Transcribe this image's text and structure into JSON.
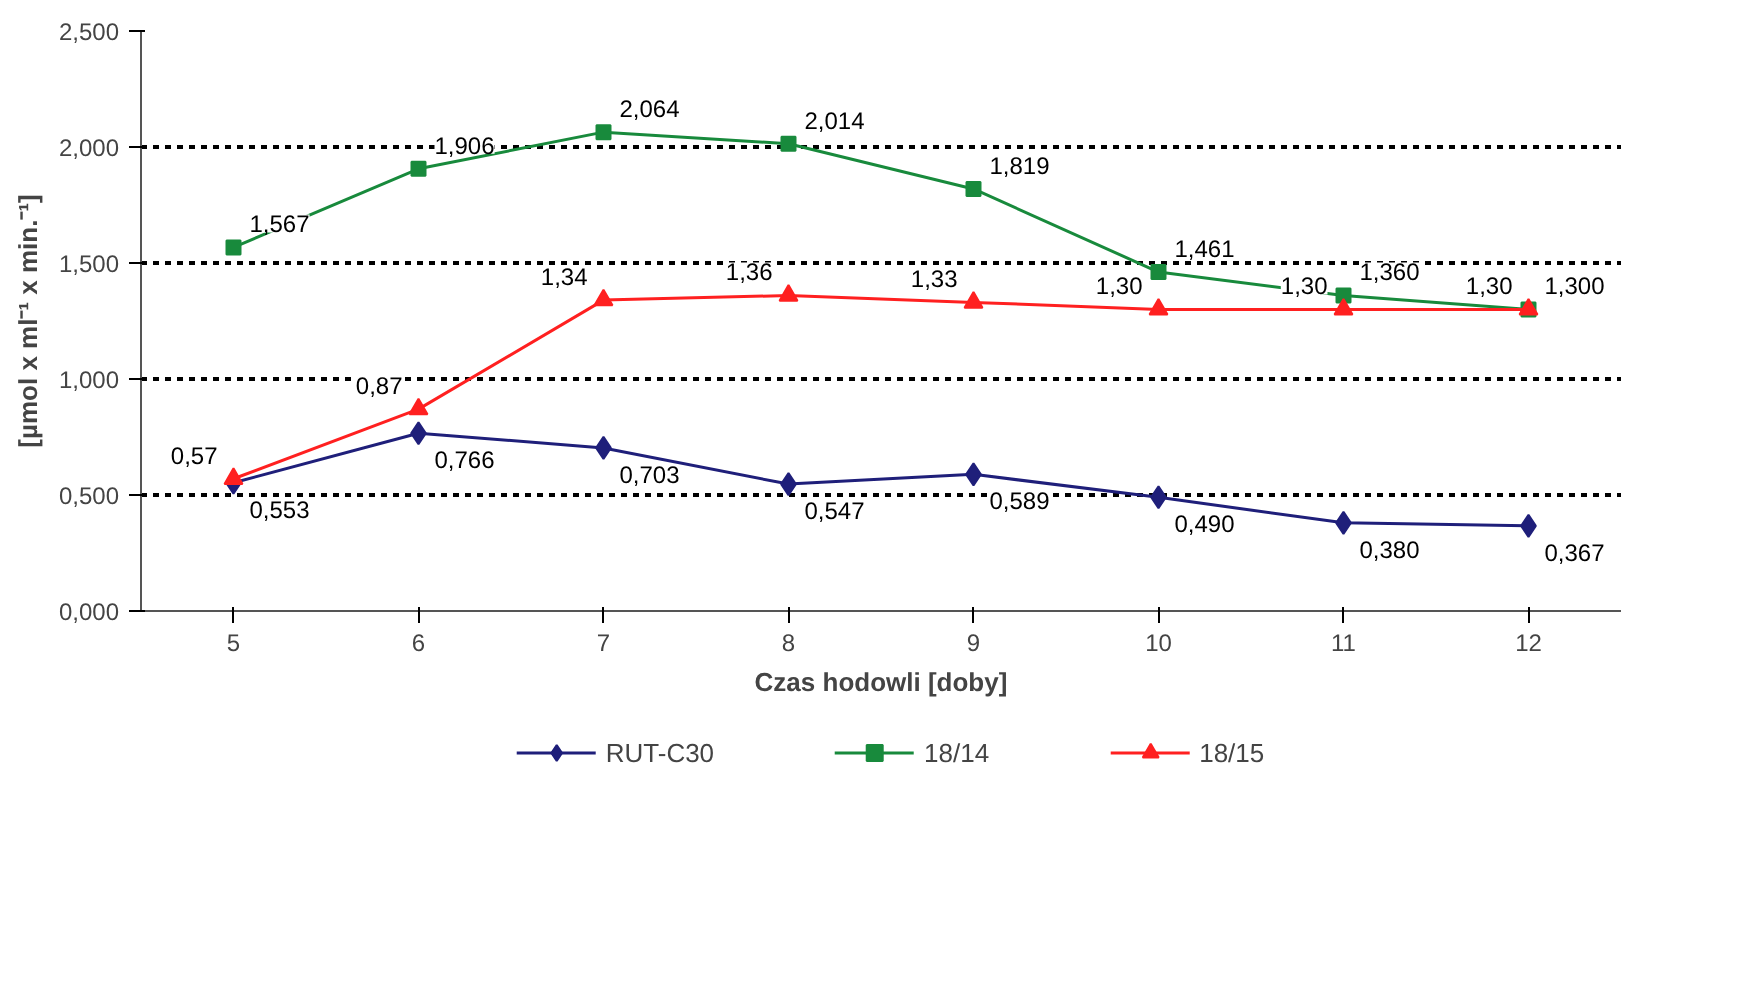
{
  "chart_data": {
    "type": "line",
    "xlabel": "Czas hodowli [doby]",
    "ylabel": "[µmol x ml⁻¹ x min.⁻¹]",
    "categories": [
      "5",
      "6",
      "7",
      "8",
      "9",
      "10",
      "11",
      "12"
    ],
    "ylim": [
      0,
      2.5
    ],
    "yticks": [
      {
        "value": 0,
        "label": "0,000"
      },
      {
        "value": 0.5,
        "label": "0,500"
      },
      {
        "value": 1,
        "label": "1,000"
      },
      {
        "value": 1.5,
        "label": "1,500"
      },
      {
        "value": 2,
        "label": "2,000"
      },
      {
        "value": 2.5,
        "label": "2,500"
      }
    ],
    "grid": "y",
    "legend": "bottom",
    "series": [
      {
        "name": "RUT-C30",
        "color": "#1f1f7a",
        "marker": "diamond",
        "values": [
          0.553,
          0.766,
          0.703,
          0.547,
          0.589,
          0.49,
          0.38,
          0.367
        ],
        "value_labels": [
          "0,553",
          "0,766",
          "0,703",
          "0,547",
          "0,589",
          "0,490",
          "0,380",
          "0,367"
        ]
      },
      {
        "name": "18/14",
        "color": "#188a3c",
        "marker": "square",
        "values": [
          1.567,
          1.906,
          2.064,
          2.014,
          1.819,
          1.461,
          1.36,
          1.3
        ],
        "value_labels": [
          "1,567",
          "1,906",
          "2,064",
          "2,014",
          "1,819",
          "1,461",
          "1,360",
          "1,300"
        ]
      },
      {
        "name": "18/15",
        "color": "#ff2020",
        "marker": "triangle",
        "values": [
          0.57,
          0.87,
          1.34,
          1.36,
          1.33,
          1.3,
          1.3,
          1.3
        ],
        "value_labels": [
          "0,57",
          "0,87",
          "1,34",
          "1,36",
          "1,33",
          "1,30",
          "1,30",
          "1,30"
        ]
      }
    ]
  }
}
